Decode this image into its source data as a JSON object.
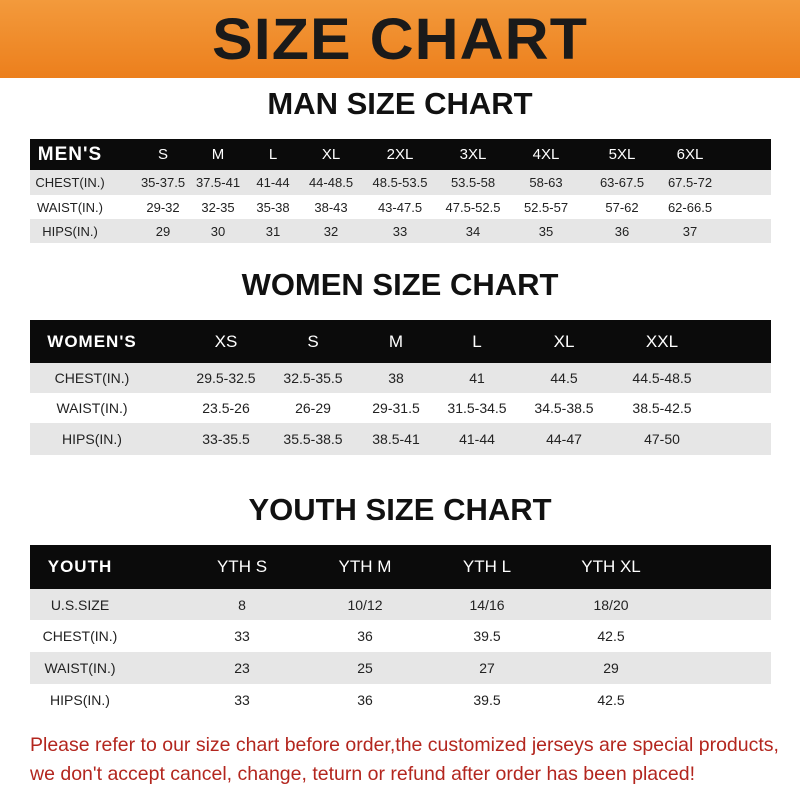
{
  "banner": {
    "title": "SIZE CHART"
  },
  "colors": {
    "banner": "#ee8a2a",
    "header_row": "#0b0b0b",
    "stripe": "#e6e6e6",
    "notice": "#b3261e"
  },
  "men": {
    "title": "MAN SIZE CHART",
    "header": [
      "MEN'S",
      "S",
      "M",
      "L",
      "XL",
      "2XL",
      "3XL",
      "4XL",
      "5XL",
      "6XL"
    ],
    "rows": [
      [
        "CHEST(IN.)",
        "35-37.5",
        "37.5-41",
        "41-44",
        "44-48.5",
        "48.5-53.5",
        "53.5-58",
        "58-63",
        "63-67.5",
        "67.5-72"
      ],
      [
        "WAIST(IN.)",
        "29-32",
        "32-35",
        "35-38",
        "38-43",
        "43-47.5",
        "47.5-52.5",
        "52.5-57",
        "57-62",
        "62-66.5"
      ],
      [
        "HIPS(IN.)",
        "29",
        "30",
        "31",
        "32",
        "33",
        "34",
        "35",
        "36",
        "37"
      ]
    ]
  },
  "women": {
    "title": "WOMEN SIZE CHART",
    "header": [
      "WOMEN'S",
      "XS",
      "S",
      "M",
      "L",
      "XL",
      "XXL"
    ],
    "rows": [
      [
        "CHEST(IN.)",
        "29.5-32.5",
        "32.5-35.5",
        "38",
        "41",
        "44.5",
        "44.5-48.5"
      ],
      [
        "WAIST(IN.)",
        "23.5-26",
        "26-29",
        "29-31.5",
        "31.5-34.5",
        "34.5-38.5",
        "38.5-42.5"
      ],
      [
        "HIPS(IN.)",
        "33-35.5",
        "35.5-38.5",
        "38.5-41",
        "41-44",
        "44-47",
        "47-50"
      ]
    ]
  },
  "youth": {
    "title": "YOUTH SIZE CHART",
    "header": [
      "YOUTH",
      "YTH S",
      "YTH M",
      "YTH L",
      "YTH XL"
    ],
    "rows": [
      [
        "U.S.SIZE",
        "8",
        "10/12",
        "14/16",
        "18/20"
      ],
      [
        "CHEST(IN.)",
        "33",
        "36",
        "39.5",
        "42.5"
      ],
      [
        "WAIST(IN.)",
        "23",
        "25",
        "27",
        "29"
      ],
      [
        "HIPS(IN.)",
        "33",
        "36",
        "39.5",
        "42.5"
      ]
    ]
  },
  "notice": {
    "line1": "Please refer to our size chart before order,the customized jerseys are special products,",
    "line2": "we don't accept cancel, change, teturn or refund after order has been placed!"
  }
}
